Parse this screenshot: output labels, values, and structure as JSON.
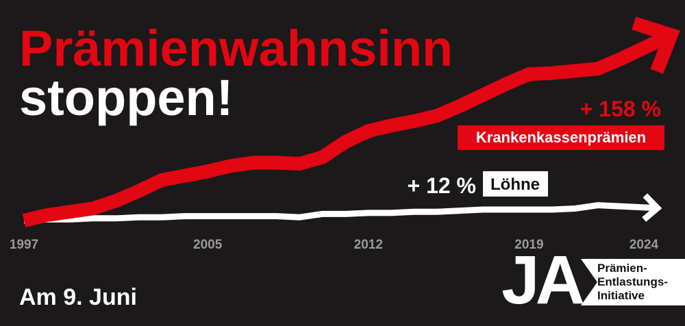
{
  "chart_data": {
    "type": "line",
    "title": "Prämienwahnsinn",
    "subtitle": "stoppen!",
    "x": [
      1997,
      1998,
      1999,
      2000,
      2001,
      2002,
      2003,
      2004,
      2005,
      2006,
      2007,
      2008,
      2009,
      2010,
      2011,
      2012,
      2013,
      2014,
      2015,
      2016,
      2017,
      2018,
      2019,
      2020,
      2021,
      2022,
      2023,
      2024
    ],
    "xticks": [
      1997,
      2005,
      2012,
      2019,
      2024
    ],
    "series": [
      {
        "name": "Krankenkassenprämien",
        "color": "#e30613",
        "end_label": "+ 158 %",
        "values": [
          0,
          5,
          8,
          11,
          18,
          27,
          37,
          41,
          45,
          50,
          53,
          53,
          52,
          58,
          72,
          82,
          87,
          91,
          96,
          105,
          115,
          125,
          134,
          135,
          137,
          139,
          148,
          158
        ]
      },
      {
        "name": "Löhne",
        "color": "#ffffff",
        "end_label": "+ 12 %",
        "values": [
          0,
          1,
          1,
          2,
          2,
          3,
          3,
          4,
          4,
          4,
          4,
          4,
          3,
          6,
          6,
          7,
          7,
          8,
          8,
          9,
          10,
          10,
          10,
          10,
          11,
          14,
          13,
          12
        ]
      }
    ]
  },
  "footer": {
    "date": "Am 9. Juni",
    "logo": {
      "mark": "JA",
      "lines": [
        "Prämien-",
        "Entlastungs-",
        "Initiative"
      ]
    }
  }
}
